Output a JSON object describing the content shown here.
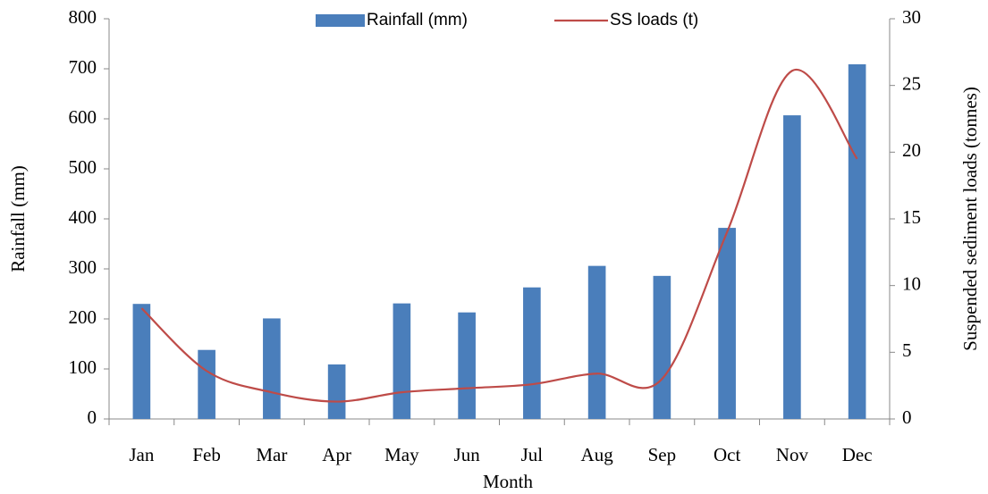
{
  "chart_data": {
    "type": "bar-line",
    "x_label": "Month",
    "y_label": "Rainfall (mm)",
    "y2_label": "Suspended sediment loads (tonnes)",
    "categories": [
      "Jan",
      "Feb",
      "Mar",
      "Apr",
      "May",
      "Jun",
      "Jul",
      "Aug",
      "Sep",
      "Oct",
      "Nov",
      "Dec"
    ],
    "series": [
      {
        "name": "Rainfall (mm)",
        "type": "bar",
        "color": "#4a7ebb",
        "values": [
          230,
          138,
          201,
          109,
          231,
          213,
          263,
          306,
          286,
          382,
          607,
          709
        ]
      },
      {
        "name": "SS loads (t)",
        "type": "line",
        "axis": "y2",
        "color": "#be4b48",
        "values": [
          8.3,
          3.6,
          2.0,
          1.3,
          2.0,
          2.3,
          2.6,
          3.4,
          3.0,
          14.0,
          26.1,
          19.5
        ]
      }
    ],
    "ylim": [
      0,
      800
    ],
    "yticks": [
      0,
      100,
      200,
      300,
      400,
      500,
      600,
      700,
      800
    ],
    "y2lim": [
      0,
      30
    ],
    "y2ticks": [
      0,
      5,
      10,
      15,
      20,
      25,
      30
    ],
    "legend": "top",
    "grid": false
  }
}
